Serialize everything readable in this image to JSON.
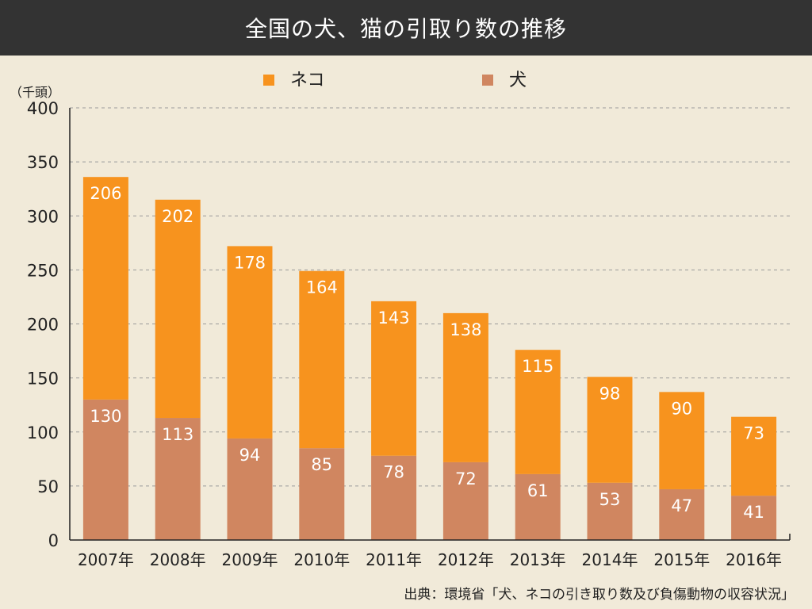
{
  "title": "全国の犬、猫の引取り数の推移",
  "unit_label": "（千頭）",
  "source": "出典：環境省「犬、ネコの引き取り数及び負傷動物の収容状況」",
  "colors": {
    "cat": "#f7931e",
    "dog": "#d08660",
    "title_bg": "#333333",
    "background": "#f1ead9"
  },
  "chart_data": {
    "type": "bar",
    "stacked": true,
    "categories": [
      "2007年",
      "2008年",
      "2009年",
      "2010年",
      "2011年",
      "2012年",
      "2013年",
      "2014年",
      "2015年",
      "2016年"
    ],
    "series": [
      {
        "name": "犬",
        "values": [
          130,
          113,
          94,
          85,
          78,
          72,
          61,
          53,
          47,
          41
        ]
      },
      {
        "name": "ネコ",
        "values": [
          206,
          202,
          178,
          164,
          143,
          138,
          115,
          98,
          90,
          73
        ]
      }
    ],
    "yticks": [
      0,
      50,
      100,
      150,
      200,
      250,
      300,
      350,
      400
    ],
    "ylim": [
      0,
      400
    ],
    "grid": "horizontal dashed",
    "legend_position": "top"
  }
}
